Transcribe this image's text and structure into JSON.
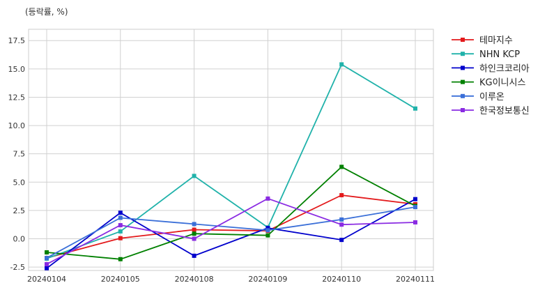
{
  "unit_label": "(등락률, %)",
  "chart_data": {
    "type": "line",
    "title": "",
    "xlabel": "",
    "ylabel": "(등락률, %)",
    "x": [
      "20240104",
      "20240105",
      "20240108",
      "20240109",
      "20240110",
      "20240111"
    ],
    "ylim": [
      -2.8,
      18.5
    ],
    "yticks": [
      "-2.5",
      "0.0",
      "2.5",
      "5.0",
      "7.5",
      "10.0",
      "12.5",
      "15.0",
      "17.5"
    ],
    "grid": true,
    "legend_position": "outside-right",
    "series": [
      {
        "name": "테마지수",
        "color": "#e31a1c",
        "values": [
          -1.7,
          0.05,
          0.8,
          0.7,
          3.85,
          3.05
        ]
      },
      {
        "name": "NHN KCP",
        "color": "#20b2aa",
        "values": [
          -1.75,
          0.65,
          5.55,
          1.0,
          15.4,
          11.5
        ]
      },
      {
        "name": "하인크코리아",
        "color": "#0000cc",
        "values": [
          -2.6,
          2.3,
          -1.5,
          0.95,
          -0.1,
          3.5
        ]
      },
      {
        "name": "KG이니시스",
        "color": "#008000",
        "values": [
          -1.2,
          -1.8,
          0.45,
          0.3,
          6.35,
          2.9
        ]
      },
      {
        "name": "이루온",
        "color": "#3a6fd8",
        "values": [
          -1.7,
          1.85,
          1.3,
          0.75,
          1.7,
          2.8
        ]
      },
      {
        "name": "한국정보통신",
        "color": "#8a2be2",
        "values": [
          -2.25,
          1.2,
          0.0,
          3.55,
          1.25,
          1.45
        ]
      }
    ]
  }
}
